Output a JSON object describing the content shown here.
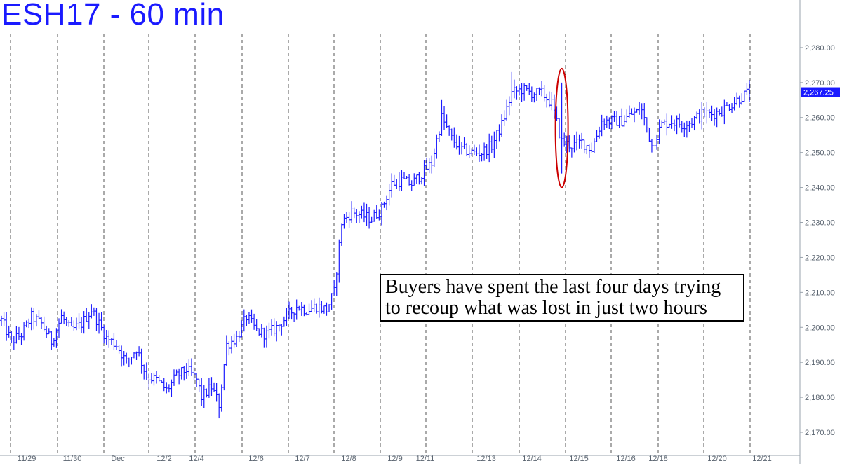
{
  "chart_data": {
    "type": "bar",
    "subtype": "ohlc",
    "title": "ESH17 - 60 min",
    "x_tick_labels": [
      "11/29",
      "11/30",
      "Dec",
      "12/2",
      "12/4",
      "12/6",
      "12/7",
      "12/8",
      "12/9",
      "12/11",
      "12/13",
      "12/14",
      "12/15",
      "12/16",
      "12/18",
      "12/20",
      "12/21"
    ],
    "y_tick_labels": [
      "2,170.00",
      "2,180.00",
      "2,190.00",
      "2,200.00",
      "2,210.00",
      "2,220.00",
      "2,230.00",
      "2,240.00",
      "2,250.00",
      "2,260.00",
      "2,270.00",
      "2,280.00"
    ],
    "y_ticks": [
      2170,
      2180,
      2190,
      2200,
      2210,
      2220,
      2230,
      2240,
      2250,
      2260,
      2270,
      2280
    ],
    "ylim": [
      2166,
      2292
    ],
    "last_price": 2267.25,
    "last_price_label": "2,267.25",
    "grid": "vertical-dashed",
    "path_close": [
      [
        0,
        2202
      ],
      [
        4,
        2196
      ],
      [
        8,
        2198
      ],
      [
        12,
        2203
      ],
      [
        16,
        2201
      ],
      [
        20,
        2196
      ],
      [
        24,
        2203
      ],
      [
        28,
        2199
      ],
      [
        32,
        2201
      ],
      [
        36,
        2205
      ],
      [
        39,
        2201
      ],
      [
        42,
        2197
      ],
      [
        46,
        2195
      ],
      [
        50,
        2190
      ],
      [
        54,
        2194
      ],
      [
        58,
        2186
      ],
      [
        62,
        2185
      ],
      [
        66,
        2182
      ],
      [
        70,
        2186
      ],
      [
        74,
        2188
      ],
      [
        78,
        2185
      ],
      [
        80,
        2180
      ],
      [
        84,
        2183
      ],
      [
        87,
        2178
      ],
      [
        90,
        2195
      ],
      [
        94,
        2197
      ],
      [
        98,
        2203
      ],
      [
        102,
        2199
      ],
      [
        106,
        2198
      ],
      [
        110,
        2200
      ],
      [
        114,
        2203
      ],
      [
        118,
        2206
      ],
      [
        122,
        2205
      ],
      [
        126,
        2206
      ],
      [
        130,
        2205
      ],
      [
        133,
        2210
      ],
      [
        136,
        2230
      ],
      [
        140,
        2233
      ],
      [
        144,
        2232
      ],
      [
        148,
        2231
      ],
      [
        152,
        2234
      ],
      [
        156,
        2241
      ],
      [
        160,
        2242
      ],
      [
        164,
        2241
      ],
      [
        168,
        2244
      ],
      [
        172,
        2247
      ],
      [
        176,
        2260
      ],
      [
        180,
        2254
      ],
      [
        184,
        2251
      ],
      [
        188,
        2250
      ],
      [
        192,
        2250
      ],
      [
        196,
        2252
      ],
      [
        200,
        2258
      ],
      [
        204,
        2267
      ],
      [
        208,
        2268
      ],
      [
        212,
        2267
      ],
      [
        216,
        2267
      ],
      [
        220,
        2264
      ],
      [
        224,
        2253
      ],
      [
        228,
        2252
      ],
      [
        232,
        2253
      ],
      [
        236,
        2251
      ],
      [
        240,
        2259
      ],
      [
        244,
        2259
      ],
      [
        248,
        2259
      ],
      [
        252,
        2261
      ],
      [
        256,
        2262
      ],
      [
        260,
        2252
      ],
      [
        264,
        2258
      ],
      [
        268,
        2259
      ],
      [
        272,
        2258
      ],
      [
        276,
        2259
      ],
      [
        280,
        2261
      ],
      [
        284,
        2261
      ],
      [
        288,
        2262
      ],
      [
        292,
        2264
      ],
      [
        296,
        2266
      ],
      [
        299,
        2267.25
      ]
    ],
    "candle_count": 300,
    "annotation": {
      "lines": [
        "Buyers have spent the last four days trying",
        "to recoup what was lost in just two hours"
      ]
    },
    "highlight_ellipse": {
      "x_index": 224,
      "y_low": 2240,
      "y_high": 2274
    },
    "colors": {
      "bars": "#1a1aff",
      "ellipse": "#cc0000",
      "grid": "#555555",
      "axis_text": "#5a6470",
      "title": "#1a1aff",
      "price_tag": "#1a1aff"
    }
  }
}
